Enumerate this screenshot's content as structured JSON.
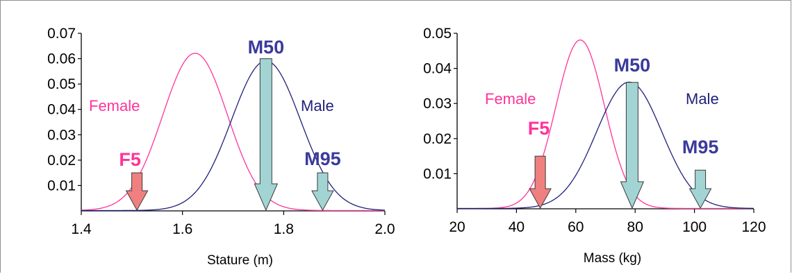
{
  "chart_data": [
    {
      "type": "line",
      "xlabel": "Stature (m)",
      "ylabel": "",
      "xlim": [
        1.4,
        2.0
      ],
      "ylim": [
        0,
        0.07
      ],
      "x_ticks": [
        "1.4",
        "1.6",
        "1.8",
        "2.0"
      ],
      "y_ticks": [
        "0.07",
        "0.06",
        "0.05",
        "0.04",
        "0.03",
        "0.02",
        "0.01"
      ],
      "grid": false,
      "series": [
        {
          "name": "Female",
          "color": "#ff3399",
          "mean": 1.625,
          "sd": 0.064,
          "peak": 0.062
        },
        {
          "name": "Male",
          "color": "#1f1f7a",
          "mean": 1.765,
          "sd": 0.068,
          "peak": 0.059
        }
      ],
      "markers": [
        {
          "label": "F5",
          "x": 1.51,
          "top": 0.015,
          "color": "#f08080",
          "text_color": "#ff3399"
        },
        {
          "label": "M50",
          "x": 1.765,
          "top": 0.06,
          "color": "#a3d4d4",
          "text_color": "#3a3a9c"
        },
        {
          "label": "M95",
          "x": 1.877,
          "top": 0.015,
          "color": "#a3d4d4",
          "text_color": "#3a3a9c"
        }
      ]
    },
    {
      "type": "line",
      "xlabel": "Mass (kg)",
      "ylabel": "",
      "xlim": [
        20,
        120
      ],
      "ylim": [
        0,
        0.05
      ],
      "x_ticks": [
        "20",
        "40",
        "60",
        "80",
        "100",
        "120"
      ],
      "y_ticks": [
        "0.05",
        "0.04",
        "0.03",
        "0.02",
        "0.01"
      ],
      "grid": false,
      "series": [
        {
          "name": "Female",
          "color": "#ff3399",
          "mean": 61.5,
          "sd": 8.2,
          "peak": 0.048
        },
        {
          "name": "Male",
          "color": "#1f1f7a",
          "mean": 78,
          "sd": 11,
          "peak": 0.036
        }
      ],
      "markers": [
        {
          "label": "F5",
          "x": 48,
          "top": 0.015,
          "color": "#f08080",
          "text_color": "#ff3399"
        },
        {
          "label": "M50",
          "x": 79,
          "top": 0.036,
          "color": "#a3d4d4",
          "text_color": "#3a3a9c"
        },
        {
          "label": "M95",
          "x": 102,
          "top": 0.011,
          "color": "#a3d4d4",
          "text_color": "#3a3a9c"
        }
      ]
    }
  ]
}
